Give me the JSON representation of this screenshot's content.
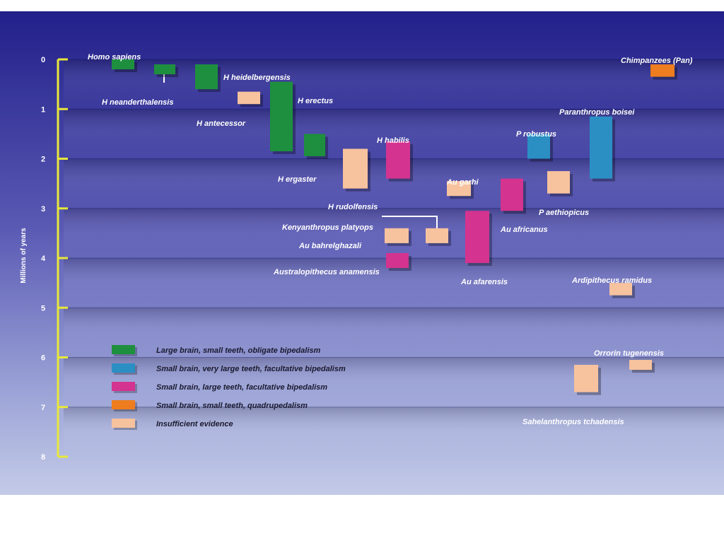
{
  "chart_data": {
    "type": "range-bar",
    "ylabel": "Millions of years",
    "ylim": [
      0,
      8
    ],
    "y_ticks": [
      "0",
      "1",
      "2",
      "3",
      "4",
      "5",
      "6",
      "7",
      "8"
    ],
    "legend": [
      {
        "key": "large",
        "label": "Large brain, small teeth, obligate bipedalism",
        "color": "#1e8f3e"
      },
      {
        "key": "teeth",
        "label": "Small brain, very large teeth, facultative bipedalism",
        "color": "#2b8fc4"
      },
      {
        "key": "facultative",
        "label": "Small brain, large teeth, facultative bipedalism",
        "color": "#d4338f"
      },
      {
        "key": "quadruped",
        "label": "Small brain, small teeth, quadrupedalism",
        "color": "#ee7d1f"
      },
      {
        "key": "insufficient",
        "label": "Insufficient evidence",
        "color": "#f7c29e"
      }
    ],
    "species": [
      {
        "name": "Homo sapiens",
        "start": 0.0,
        "end": 0.2,
        "group": "large"
      },
      {
        "name": "H neanderthalensis",
        "start": 0.1,
        "end": 0.3,
        "group": "large"
      },
      {
        "name": "H heidelbergensis",
        "start": 0.1,
        "end": 0.6,
        "group": "large"
      },
      {
        "name": "H antecessor",
        "start": 0.65,
        "end": 0.9,
        "group": "insufficient"
      },
      {
        "name": "H erectus",
        "start": 0.45,
        "end": 1.85,
        "group": "large"
      },
      {
        "name": "H ergaster",
        "start": 1.5,
        "end": 1.95,
        "group": "large"
      },
      {
        "name": "H rudolfensis",
        "start": 1.8,
        "end": 2.6,
        "group": "insufficient"
      },
      {
        "name": "H habilis",
        "start": 1.65,
        "end": 2.4,
        "group": "facultative"
      },
      {
        "name": "Au garhi",
        "start": 2.45,
        "end": 2.75,
        "group": "insufficient"
      },
      {
        "name": "Au africanus",
        "start": 2.4,
        "end": 3.05,
        "group": "facultative"
      },
      {
        "name": "P robustus",
        "start": 1.5,
        "end": 2.0,
        "group": "teeth"
      },
      {
        "name": "P aethiopicus",
        "start": 2.25,
        "end": 2.7,
        "group": "insufficient"
      },
      {
        "name": "Paranthropus boisei",
        "start": 1.15,
        "end": 2.4,
        "group": "teeth"
      },
      {
        "name": "Kenyanthropus platyops",
        "start": 3.4,
        "end": 3.7,
        "group": "insufficient"
      },
      {
        "name": "Au bahrelghazali",
        "start": 3.4,
        "end": 3.7,
        "group": "insufficient"
      },
      {
        "name": "Australopithecus anamensis",
        "start": 3.9,
        "end": 4.2,
        "group": "facultative"
      },
      {
        "name": "Au afarensis",
        "start": 3.05,
        "end": 4.1,
        "group": "facultative"
      },
      {
        "name": "Ardipithecus ramidus",
        "start": 4.5,
        "end": 4.75,
        "group": "insufficient"
      },
      {
        "name": "Orrorin tugenensis",
        "start": 6.05,
        "end": 6.25,
        "group": "insufficient"
      },
      {
        "name": "Sahelanthropus tchadensis",
        "start": 6.15,
        "end": 6.7,
        "group": "insufficient"
      },
      {
        "name": "Chimpanzees (Pan)",
        "start": 0.1,
        "end": 0.35,
        "group": "quadruped"
      }
    ]
  }
}
